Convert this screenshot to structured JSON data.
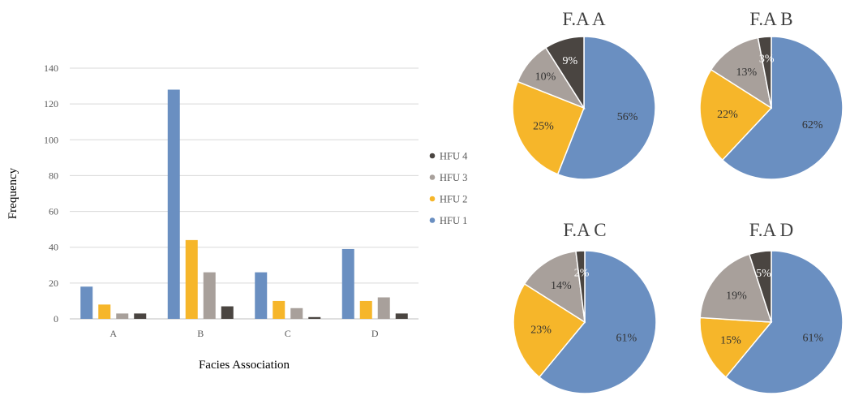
{
  "chart_data": [
    {
      "type": "bar",
      "title": "",
      "xlabel": "Facies Association",
      "ylabel": "Frequency",
      "categories": [
        "A",
        "B",
        "C",
        "D"
      ],
      "ylim": [
        0,
        140
      ],
      "yticks": [
        0,
        20,
        40,
        60,
        80,
        100,
        120,
        140
      ],
      "grid": true,
      "legend_position": "right",
      "legend_order": [
        "HFU 4",
        "HFU 3",
        "HFU 2",
        "HFU 1"
      ],
      "series": [
        {
          "name": "HFU 1",
          "color": "#6a8fc1",
          "values": [
            18,
            128,
            26,
            39
          ]
        },
        {
          "name": "HFU 2",
          "color": "#f6b62a",
          "values": [
            8,
            44,
            10,
            10
          ]
        },
        {
          "name": "HFU 3",
          "color": "#a8a09b",
          "values": [
            3,
            26,
            6,
            12
          ]
        },
        {
          "name": "HFU 4",
          "color": "#4a4541",
          "values": [
            3,
            7,
            1,
            3
          ]
        }
      ]
    },
    {
      "type": "pie",
      "title": "F.A A",
      "slices": [
        {
          "name": "HFU 1",
          "value": 56,
          "label": "56%",
          "color": "#6a8fc1"
        },
        {
          "name": "HFU 2",
          "value": 25,
          "label": "25%",
          "color": "#f6b62a"
        },
        {
          "name": "HFU 3",
          "value": 10,
          "label": "10%",
          "color": "#a8a09b"
        },
        {
          "name": "HFU 4",
          "value": 9,
          "label": "9%",
          "color": "#4a4541"
        }
      ]
    },
    {
      "type": "pie",
      "title": "F.A B",
      "slices": [
        {
          "name": "HFU 1",
          "value": 62,
          "label": "62%",
          "color": "#6a8fc1"
        },
        {
          "name": "HFU 2",
          "value": 22,
          "label": "22%",
          "color": "#f6b62a"
        },
        {
          "name": "HFU 3",
          "value": 13,
          "label": "13%",
          "color": "#a8a09b"
        },
        {
          "name": "HFU 4",
          "value": 3,
          "label": "3%",
          "color": "#4a4541"
        }
      ]
    },
    {
      "type": "pie",
      "title": "F.A C",
      "slices": [
        {
          "name": "HFU 1",
          "value": 61,
          "label": "61%",
          "color": "#6a8fc1"
        },
        {
          "name": "HFU 2",
          "value": 23,
          "label": "23%",
          "color": "#f6b62a"
        },
        {
          "name": "HFU 3",
          "value": 14,
          "label": "14%",
          "color": "#a8a09b"
        },
        {
          "name": "HFU 4",
          "value": 2,
          "label": "2%",
          "color": "#4a4541"
        }
      ]
    },
    {
      "type": "pie",
      "title": "F.A D",
      "slices": [
        {
          "name": "HFU 1",
          "value": 61,
          "label": "61%",
          "color": "#6a8fc1"
        },
        {
          "name": "HFU 2",
          "value": 15,
          "label": "15%",
          "color": "#f6b62a"
        },
        {
          "name": "HFU 3",
          "value": 19,
          "label": "19%",
          "color": "#a8a09b"
        },
        {
          "name": "HFU 4",
          "value": 5,
          "label": "5%",
          "color": "#4a4541"
        }
      ]
    }
  ]
}
